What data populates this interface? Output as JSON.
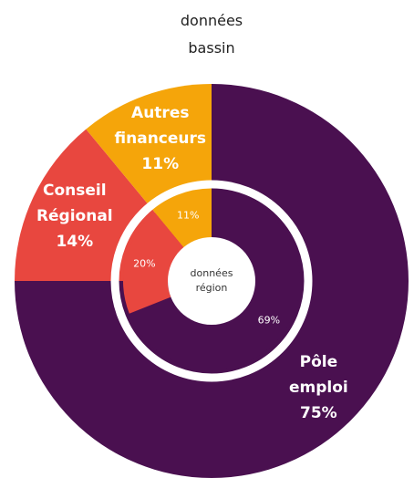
{
  "chart_data": [
    {
      "type": "pie",
      "title": "données bassin",
      "categories": [
        "Pôle emploi",
        "Conseil Régional",
        "Autres financeurs"
      ],
      "values": [
        75,
        14,
        11
      ],
      "value_labels": [
        "75%",
        "14%",
        "11%"
      ],
      "colors": [
        "#4a1050",
        "#e8473f",
        "#f5a50a"
      ]
    },
    {
      "type": "donut",
      "center_label": "données région",
      "values": [
        69,
        20,
        11
      ],
      "value_labels": [
        "69%",
        "20%",
        "11%"
      ],
      "colors": [
        "#4a1050",
        "#e8473f",
        "#f5a50a"
      ]
    }
  ]
}
